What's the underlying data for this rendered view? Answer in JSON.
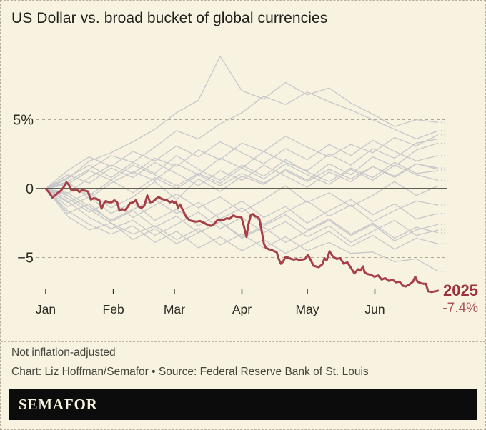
{
  "header": {
    "title": "US Dollar vs. broad bucket of global currencies"
  },
  "chart_data": {
    "type": "line",
    "title": "US Dollar vs. broad bucket of global currencies",
    "xlabel": "",
    "ylabel": "",
    "x_unit": "day of year (Jan 1 = 0)",
    "legend_position": "none",
    "grid": "dashed horizontal gridlines at +5% and -5%, solid axis at 0",
    "colors": {
      "background": "#f7f3e0",
      "line_red": "#a63f47",
      "line_gray": "#c7c7cb",
      "grid": "#ada895",
      "axis": "#2e2e26",
      "text": "#2b2b22",
      "annotation_year": "#9c333b",
      "annotation_value": "#ae525a"
    },
    "y_axis": {
      "range": [
        -8.6,
        10.4
      ],
      "ticks": [
        {
          "label": "5%",
          "value": 5
        },
        {
          "label": "0",
          "value": 0
        },
        {
          "label": "−5",
          "value": -5
        }
      ]
    },
    "x_axis": {
      "months": [
        {
          "label": "Jan",
          "day": 0
        },
        {
          "label": "Feb",
          "day": 31
        },
        {
          "label": "Mar",
          "day": 59
        },
        {
          "label": "Apr",
          "day": 90
        },
        {
          "label": "May",
          "day": 120
        },
        {
          "label": "Jun",
          "day": 151
        }
      ]
    },
    "annotation": {
      "year": "2025",
      "value": "-7.4%"
    },
    "highlight_series": {
      "name": "2025",
      "final_value_pct": -7.4,
      "points": [
        [
          0,
          0
        ],
        [
          1.6,
          -0.3
        ],
        [
          3,
          -0.65
        ],
        [
          4.3,
          -0.5
        ],
        [
          5.6,
          -0.3
        ],
        [
          7,
          -0.15
        ],
        [
          8.2,
          0.1
        ],
        [
          9.5,
          0.45
        ],
        [
          10.5,
          0.3
        ],
        [
          11.5,
          -0.05
        ],
        [
          12.8,
          -0.15
        ],
        [
          14.1,
          -0.05
        ],
        [
          15.4,
          -0.25
        ],
        [
          16.7,
          -0.1
        ],
        [
          18,
          -0.15
        ],
        [
          19.3,
          -0.2
        ],
        [
          20.7,
          -0.8
        ],
        [
          22,
          -0.7
        ],
        [
          23.3,
          -0.75
        ],
        [
          24.6,
          -0.85
        ],
        [
          25.6,
          -1.45
        ],
        [
          26.6,
          -1.1
        ],
        [
          27.5,
          -0.9
        ],
        [
          29,
          -1
        ],
        [
          30.2,
          -1
        ],
        [
          31.5,
          -0.85
        ],
        [
          32.8,
          -1
        ],
        [
          33.8,
          -1.6
        ],
        [
          35.1,
          -1.5
        ],
        [
          36.4,
          -1.55
        ],
        [
          37.7,
          -1.3
        ],
        [
          38.7,
          -1.05
        ],
        [
          40,
          -1
        ],
        [
          41.3,
          -0.85
        ],
        [
          42.6,
          -1.3
        ],
        [
          43.9,
          -1.4
        ],
        [
          45.2,
          -1.25
        ],
        [
          46.6,
          -0.5
        ],
        [
          47.9,
          -1
        ],
        [
          49.2,
          -0.95
        ],
        [
          50.5,
          -0.75
        ],
        [
          51.8,
          -0.6
        ],
        [
          53.1,
          -0.75
        ],
        [
          54.4,
          -0.8
        ],
        [
          55.7,
          -0.85
        ],
        [
          57,
          -1
        ],
        [
          58,
          -0.9
        ],
        [
          59,
          -1.05
        ],
        [
          59.7,
          -0.95
        ],
        [
          60.7,
          -1.4
        ],
        [
          61.6,
          -1.15
        ],
        [
          63,
          -1.6
        ],
        [
          64.4,
          -2.05
        ],
        [
          66,
          -2.3
        ],
        [
          67.2,
          -2.35
        ],
        [
          69,
          -2.4
        ],
        [
          70.8,
          -2.35
        ],
        [
          72.8,
          -2.5
        ],
        [
          74.4,
          -2.65
        ],
        [
          76,
          -2.7
        ],
        [
          77,
          -2.6
        ],
        [
          78.7,
          -2.3
        ],
        [
          80,
          -2.25
        ],
        [
          81.3,
          -2.3
        ],
        [
          83,
          -2.15
        ],
        [
          84.3,
          -2.2
        ],
        [
          86,
          -1.95
        ],
        [
          87.5,
          -2.05
        ],
        [
          89,
          -2.05
        ],
        [
          89.8,
          -2.1
        ],
        [
          91,
          -2.8
        ],
        [
          92.1,
          -3.5
        ],
        [
          93,
          -2.6
        ],
        [
          94.1,
          -1.9
        ],
        [
          95.1,
          -1.85
        ],
        [
          96,
          -2
        ],
        [
          97,
          -2.05
        ],
        [
          98,
          -2.2
        ],
        [
          99,
          -3
        ],
        [
          100.1,
          -4
        ],
        [
          101,
          -4.3
        ],
        [
          102.3,
          -4.4
        ],
        [
          103.6,
          -4.45
        ],
        [
          104.9,
          -4.55
        ],
        [
          105.9,
          -4.6
        ],
        [
          106.9,
          -5.1
        ],
        [
          107.9,
          -5.45
        ],
        [
          108.9,
          -5.3
        ],
        [
          109.8,
          -5
        ],
        [
          111.1,
          -5
        ],
        [
          112.5,
          -5.1
        ],
        [
          113.8,
          -5.15
        ],
        [
          115.1,
          -5.1
        ],
        [
          116.4,
          -5.2
        ],
        [
          117.7,
          -5.15
        ],
        [
          119,
          -5.1
        ],
        [
          120.3,
          -4.8
        ],
        [
          121.6,
          -5.2
        ],
        [
          122.9,
          -5.6
        ],
        [
          125.2,
          -5.7
        ],
        [
          126.9,
          -5.5
        ],
        [
          127.9,
          -5.05
        ],
        [
          128.9,
          -5.2
        ],
        [
          130.2,
          -4.55
        ],
        [
          131.8,
          -4.95
        ],
        [
          133.4,
          -5.1
        ],
        [
          135.1,
          -5.05
        ],
        [
          136.7,
          -5.45
        ],
        [
          138.4,
          -5.35
        ],
        [
          140,
          -5.75
        ],
        [
          141.6,
          -6.15
        ],
        [
          143.3,
          -5.85
        ],
        [
          144.3,
          -5.95
        ],
        [
          145.6,
          -5.65
        ],
        [
          146.2,
          -6.05
        ],
        [
          147.5,
          -6.2
        ],
        [
          149.2,
          -6.25
        ],
        [
          150.8,
          -6.4
        ],
        [
          152.5,
          -6.3
        ],
        [
          154.1,
          -6.6
        ],
        [
          155.7,
          -6.5
        ],
        [
          157.4,
          -6.7
        ],
        [
          159,
          -6.6
        ],
        [
          160.7,
          -6.8
        ],
        [
          162.3,
          -6.75
        ],
        [
          163.9,
          -7.05
        ],
        [
          165.2,
          -7.1
        ],
        [
          166.9,
          -6.95
        ],
        [
          168.5,
          -6.75
        ],
        [
          169.5,
          -6.4
        ],
        [
          170.5,
          -6.75
        ],
        [
          171.8,
          -6.85
        ],
        [
          173.1,
          -6.9
        ],
        [
          174.4,
          -6.9
        ],
        [
          175.4,
          -7.45
        ],
        [
          177,
          -7.5
        ],
        [
          178.7,
          -7.45
        ],
        [
          180.3,
          -7.4
        ]
      ]
    },
    "background_step_days": 10,
    "background_series": [
      {
        "name": "prior-year-01",
        "values": [
          0,
          0.7,
          2.0,
          2.6,
          3.4,
          4.3,
          5.5,
          6.4,
          9.6,
          7.1,
          6.5,
          7.7,
          6.8,
          7.3,
          6.2,
          5.4,
          4.5,
          5.0,
          4.8
        ]
      },
      {
        "name": "prior-year-02",
        "values": [
          0,
          0.5,
          1.4,
          2.4,
          1.9,
          3.0,
          4.2,
          3.6,
          4.7,
          5.5,
          6.7,
          6.1,
          7.0,
          6.3,
          5.7,
          5.0,
          4.3,
          3.6,
          4.2
        ]
      },
      {
        "name": "prior-year-03",
        "values": [
          0,
          -0.4,
          0.8,
          1.7,
          1.1,
          2.2,
          1.6,
          2.8,
          2.1,
          3.3,
          2.7,
          3.8,
          3.0,
          2.3,
          3.2,
          2.6,
          3.7,
          3.1,
          3.9
        ]
      },
      {
        "name": "prior-year-04",
        "values": [
          0,
          0.5,
          -0.7,
          0.4,
          1.2,
          0.6,
          1.8,
          1.0,
          2.2,
          1.5,
          2.7,
          1.9,
          1.3,
          2.5,
          1.7,
          2.9,
          2.2,
          3.3,
          3.6
        ]
      },
      {
        "name": "prior-year-05",
        "values": [
          0,
          -1.0,
          -0.3,
          -1.4,
          -0.6,
          0.5,
          -0.8,
          0.7,
          -0.2,
          0.9,
          0.3,
          1.4,
          0.6,
          1.8,
          1.0,
          2.3,
          1.6,
          2.8,
          3.3
        ]
      },
      {
        "name": "prior-year-06",
        "values": [
          0,
          0.8,
          1.7,
          0.8,
          1.9,
          1.1,
          2.4,
          1.4,
          0.6,
          1.7,
          0.9,
          2.1,
          1.2,
          0.5,
          1.5,
          0.8,
          1.9,
          1.1,
          1.3
        ]
      },
      {
        "name": "prior-year-07",
        "values": [
          0,
          -0.7,
          -1.7,
          -0.9,
          -2.1,
          -1.2,
          -0.4,
          -1.4,
          -0.6,
          -1.7,
          -0.8,
          0.2,
          -1.0,
          -0.3,
          -1.3,
          -0.5,
          0.5,
          -0.5,
          0.2
        ]
      },
      {
        "name": "prior-year-08",
        "values": [
          0,
          -1.3,
          -0.6,
          -1.8,
          -1.0,
          -2.3,
          -1.5,
          -2.7,
          -1.8,
          -0.9,
          -2.1,
          -1.3,
          -2.5,
          -1.6,
          -0.8,
          -1.9,
          -1.1,
          -2.2,
          -1.8
        ]
      },
      {
        "name": "prior-year-09",
        "values": [
          0,
          -0.3,
          -1.3,
          -2.3,
          -1.5,
          -0.8,
          -1.8,
          -1.0,
          -2.2,
          -1.4,
          -2.6,
          -1.7,
          -0.9,
          -2.0,
          -1.2,
          -2.4,
          -1.6,
          -0.9,
          -1.2
        ]
      },
      {
        "name": "prior-year-10",
        "values": [
          0,
          -1.8,
          -1.1,
          -2.4,
          -1.6,
          -2.8,
          -2.0,
          -3.2,
          -2.4,
          -3.5,
          -2.7,
          -1.9,
          -3.0,
          -2.2,
          -3.3,
          -2.5,
          -3.6,
          -2.8,
          -3.2
        ]
      },
      {
        "name": "prior-year-11",
        "values": [
          0,
          -0.9,
          -2.1,
          -2.9,
          -2.3,
          -3.4,
          -2.6,
          -1.7,
          -2.9,
          -2.1,
          -3.2,
          -2.4,
          -3.5,
          -2.7,
          -3.9,
          -3.1,
          -2.3,
          -3.4,
          -3.0
        ]
      },
      {
        "name": "prior-year-12",
        "values": [
          0,
          -0.5,
          -1.5,
          -2.5,
          -3.3,
          -2.7,
          -3.7,
          -2.9,
          -4.1,
          -3.3,
          -4.3,
          -3.5,
          -4.5,
          -3.9,
          -4.7,
          -4.6,
          -5.3,
          -5.1,
          -6.0
        ]
      },
      {
        "name": "prior-year-13",
        "values": [
          0,
          1.0,
          0.4,
          1.5,
          0.8,
          1.9,
          1.1,
          0.2,
          1.3,
          0.6,
          1.7,
          0.9,
          0.1,
          1.2,
          0.5,
          1.6,
          0.8,
          1.8,
          1.4
        ]
      },
      {
        "name": "prior-year-14",
        "values": [
          0,
          0.3,
          1.3,
          0.6,
          1.7,
          1.0,
          0.2,
          1.1,
          0.4,
          1.5,
          0.7,
          1.8,
          1.0,
          0.3,
          1.4,
          0.6,
          1.7,
          1.0,
          0.6
        ]
      },
      {
        "name": "prior-year-15",
        "values": [
          0,
          -2.0,
          -3.0,
          -2.5,
          -3.7,
          -2.9,
          -4.0,
          -3.2,
          -2.4,
          -3.6,
          -2.8,
          -3.9,
          -3.1,
          -2.3,
          -3.4,
          -2.6,
          -3.8,
          -3.0,
          -2.6
        ]
      },
      {
        "name": "prior-year-16",
        "values": [
          0,
          0.4,
          -0.5,
          0.6,
          -0.3,
          0.8,
          0.0,
          1.0,
          0.2,
          1.1,
          0.4,
          1.3,
          0.5,
          1.4,
          0.7,
          1.6,
          0.9,
          1.8,
          1.5
        ]
      },
      {
        "name": "prior-year-17",
        "values": [
          0,
          -1.6,
          -2.6,
          -3.3,
          -2.7,
          -3.9,
          -3.1,
          -4.3,
          -3.5,
          -4.5,
          -3.7,
          -4.7,
          -3.9,
          -3.1,
          -4.2,
          -3.4,
          -4.4,
          -3.6,
          -4.0
        ]
      },
      {
        "name": "prior-year-18",
        "values": [
          0,
          1.3,
          2.3,
          1.6,
          2.7,
          2.0,
          3.1,
          2.3,
          3.4,
          2.6,
          1.8,
          2.9,
          2.1,
          3.2,
          2.4,
          3.5,
          2.7,
          2.0,
          2.4
        ]
      }
    ]
  },
  "footer": {
    "note": "Not inflation-adjusted",
    "credit": "Chart: Liz Hoffman/Semafor • Source: Federal Reserve Bank of St. Louis",
    "logo": "SEMAFOR"
  }
}
